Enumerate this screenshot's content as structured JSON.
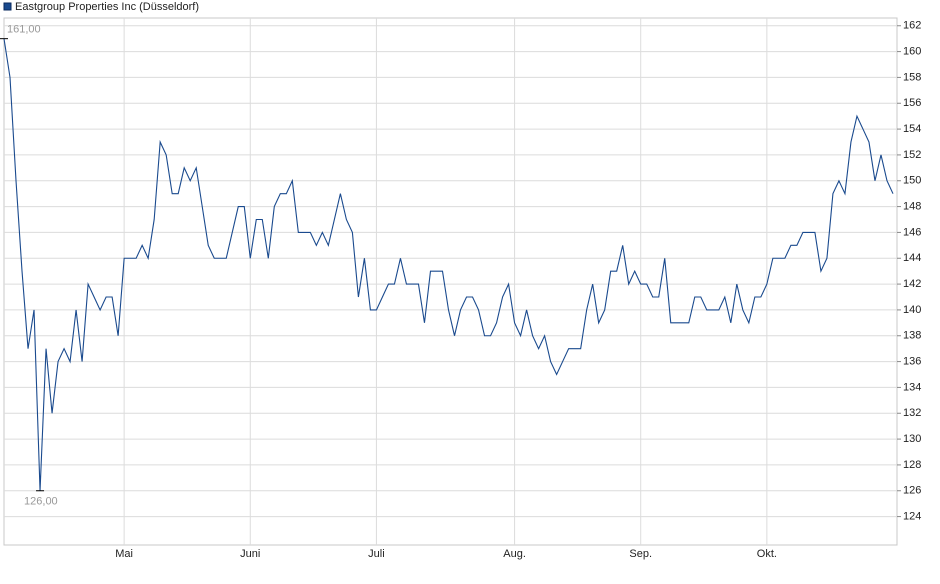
{
  "chart_data": {
    "type": "line",
    "categories": [
      null,
      null,
      null,
      null,
      null,
      null,
      null,
      null,
      null,
      null,
      null,
      null,
      null,
      null,
      null,
      null,
      null,
      null,
      null,
      null,
      "Mai",
      null,
      null,
      null,
      null,
      null,
      null,
      null,
      null,
      null,
      null,
      null,
      null,
      null,
      null,
      null,
      null,
      null,
      null,
      null,
      null,
      "Juni",
      null,
      null,
      null,
      null,
      null,
      null,
      null,
      null,
      null,
      null,
      null,
      null,
      null,
      null,
      null,
      null,
      null,
      null,
      null,
      null,
      "Juli",
      null,
      null,
      null,
      null,
      null,
      null,
      null,
      null,
      null,
      null,
      null,
      null,
      null,
      null,
      null,
      null,
      null,
      null,
      null,
      null,
      null,
      null,
      "Aug.",
      null,
      null,
      null,
      null,
      null,
      null,
      null,
      null,
      null,
      null,
      null,
      null,
      null,
      null,
      null,
      null,
      null,
      null,
      null,
      null,
      "Sep.",
      null,
      null,
      null,
      null,
      null,
      null,
      null,
      null,
      null,
      null,
      null,
      null,
      null,
      null,
      null,
      null,
      null,
      null,
      null,
      null,
      "Okt.",
      null,
      null,
      null,
      null,
      null,
      null,
      null,
      null,
      null,
      null,
      null,
      null,
      null,
      null,
      null,
      null,
      null,
      null,
      null,
      null,
      null
    ],
    "series": [
      {
        "name": "Eastgroup Properties Inc (Düsseldorf)",
        "color": "#1a4a8e",
        "values": [
          161,
          158,
          150,
          143,
          137,
          140,
          126,
          137,
          132,
          136,
          137,
          136,
          140,
          136,
          142,
          141,
          140,
          141,
          141,
          138,
          144,
          144,
          144,
          145,
          144,
          147,
          153,
          152,
          149,
          149,
          151,
          150,
          151,
          148,
          145,
          144,
          144,
          144,
          146,
          148,
          148,
          144,
          147,
          147,
          144,
          148,
          149,
          149,
          150,
          146,
          146,
          146,
          145,
          146,
          145,
          147,
          149,
          147,
          146,
          141,
          144,
          140,
          140,
          141,
          142,
          142,
          144,
          142,
          142,
          142,
          139,
          143,
          143,
          143,
          140,
          138,
          140,
          141,
          141,
          140,
          138,
          138,
          139,
          141,
          142,
          139,
          138,
          140,
          138,
          137,
          138,
          136,
          135,
          136,
          137,
          137,
          137,
          140,
          142,
          139,
          140,
          143,
          143,
          145,
          142,
          143,
          142,
          142,
          141,
          141,
          144,
          139,
          139,
          139,
          139,
          141,
          141,
          140,
          140,
          140,
          141,
          139,
          142,
          140,
          139,
          141,
          141,
          142,
          144,
          144,
          144,
          145,
          145,
          146,
          146,
          146,
          143,
          144,
          149,
          150,
          149,
          153,
          155,
          154,
          153,
          150,
          152,
          150,
          149
        ]
      }
    ],
    "max_label": "161,00",
    "min_label": "126,00",
    "ylim": [
      121.8,
      162.6
    ],
    "yticks": [
      124,
      126,
      128,
      130,
      132,
      134,
      136,
      138,
      140,
      142,
      144,
      146,
      148,
      150,
      152,
      154,
      156,
      158,
      160,
      162
    ],
    "grid": true
  }
}
